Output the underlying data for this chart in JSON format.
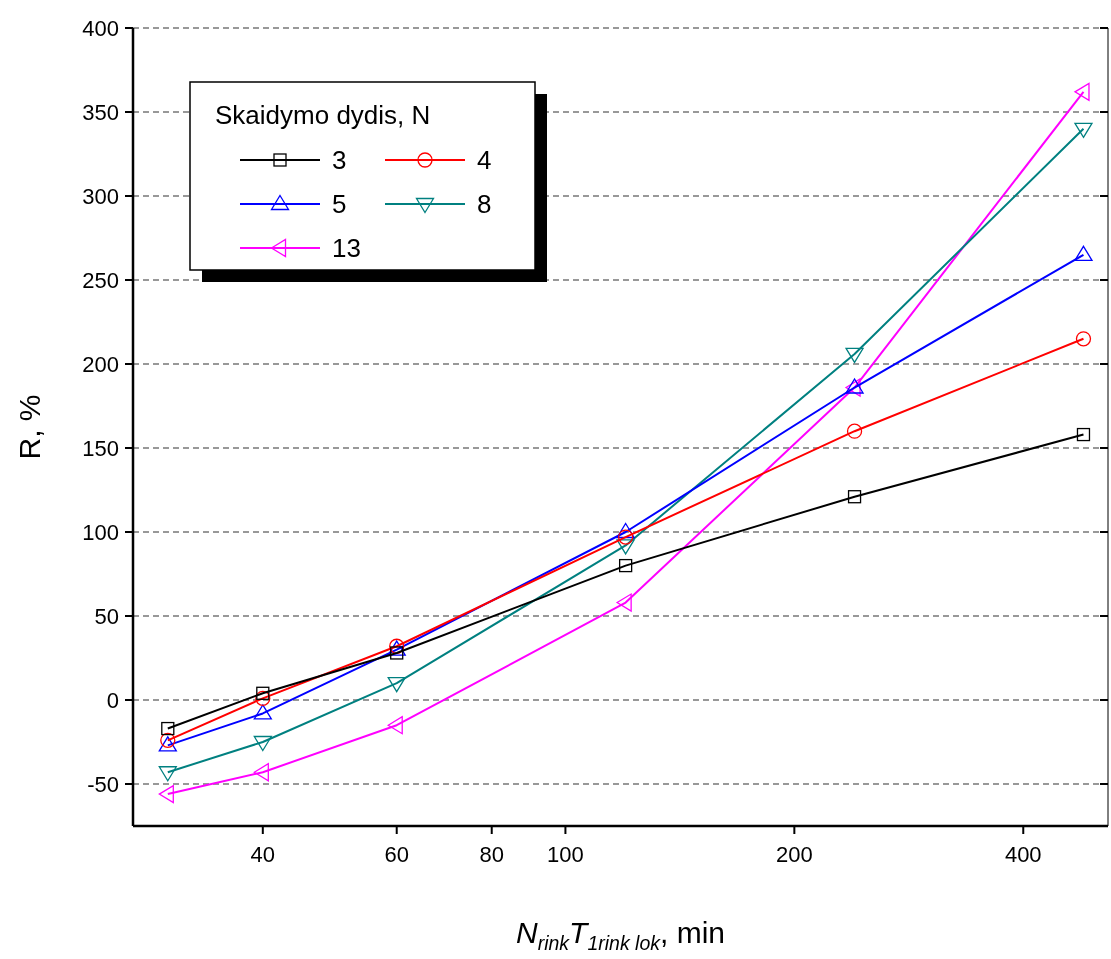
{
  "chart_data": {
    "type": "line",
    "xlabel": "N$_{rink}$T$_{1rink  lok}$, min",
    "ylabel": "R, %",
    "legend_title": "Skaidymo dydis, N",
    "log": "x",
    "x": [
      30,
      40,
      60,
      120,
      240,
      480
    ],
    "xlim": [
      27,
      517
    ],
    "xticks": [
      40,
      60,
      80,
      100,
      200,
      400
    ],
    "ylim": [
      -75,
      400
    ],
    "yticks": [
      -50,
      0,
      50,
      100,
      150,
      200,
      250,
      300,
      350,
      400
    ],
    "grid": "y",
    "legend": "top left",
    "series": [
      {
        "name": "3",
        "color": "#000000",
        "marker": "square",
        "values": [
          -17,
          4,
          28,
          80,
          121,
          158
        ]
      },
      {
        "name": "4",
        "color": "#ff0000",
        "marker": "circle",
        "values": [
          -24,
          1,
          32,
          97,
          160,
          215
        ]
      },
      {
        "name": "5",
        "color": "#0000ff",
        "marker": "triangle",
        "values": [
          -27,
          -8,
          30,
          100,
          186,
          265
        ]
      },
      {
        "name": "8",
        "color": "#008080",
        "marker": "triangle-down",
        "values": [
          -43,
          -25,
          10,
          92,
          206,
          340
        ]
      },
      {
        "name": "13",
        "color": "#ff00ff",
        "marker": "triangle-left",
        "values": [
          -56,
          -43,
          -15,
          58,
          186,
          362
        ]
      }
    ]
  }
}
